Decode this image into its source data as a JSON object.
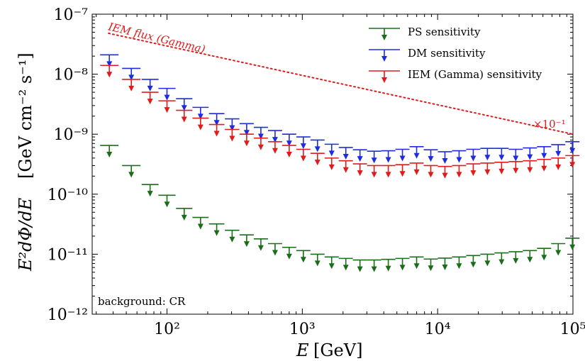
{
  "chart_data": {
    "type": "scatter",
    "xlabel_main": "E",
    "xlabel_unit": "[GeV]",
    "ylabel_main": "E²dΦ/dE",
    "ylabel_unit": "[GeV cm⁻² s⁻¹]",
    "xscale": "log",
    "yscale": "log",
    "xlim": [
      28,
      100000
    ],
    "ylim": [
      1e-12,
      1e-07
    ],
    "x_ticks": [
      {
        "value": 100,
        "label": "10²"
      },
      {
        "value": 1000,
        "label": "10³"
      },
      {
        "value": 10000,
        "label": "10⁴"
      },
      {
        "value": 100000,
        "label": "10⁵"
      }
    ],
    "y_ticks": [
      {
        "value": 1e-12,
        "label": "10⁻¹²"
      },
      {
        "value": 1e-11,
        "label": "10⁻¹¹"
      },
      {
        "value": 1e-10,
        "label": "10⁻¹⁰"
      },
      {
        "value": 1e-09,
        "label": "10⁻⁹"
      },
      {
        "value": 1e-08,
        "label": "10⁻⁸"
      },
      {
        "value": 1e-07,
        "label": "10⁻⁷"
      }
    ],
    "legend_position": "top-right",
    "series": [
      {
        "name": "PS sensitivity",
        "color": "#1a6e1a",
        "marker": "upper-limit-arrow",
        "x": [
          37.5,
          54.5,
          75,
          100,
          134,
          177,
          233,
          303,
          388,
          494,
          629,
          800,
          1018,
          1295,
          1648,
          2097,
          2668,
          3395,
          4320,
          5497,
          6995,
          8900,
          11325,
          14411,
          18337,
          23333,
          29690,
          37778,
          48070,
          61166,
          77830,
          99031
        ],
        "y": [
          6.5e-10,
          3e-10,
          1.45e-10,
          9.6e-11,
          5.8e-11,
          4.1e-11,
          3.2e-11,
          2.5e-11,
          2.1e-11,
          1.8e-11,
          1.5e-11,
          1.3e-11,
          1.15e-11,
          1e-11,
          9e-12,
          8.5e-12,
          8e-12,
          8e-12,
          8.2e-12,
          8.5e-12,
          9e-12,
          8.3e-12,
          8.6e-12,
          9e-12,
          9.5e-12,
          1e-11,
          1.05e-11,
          1.1e-11,
          1.15e-11,
          1.25e-11,
          1.5e-11,
          1.85e-11
        ]
      },
      {
        "name": "DM sensitivity",
        "color": "#1f2be0",
        "marker": "upper-limit-arrow",
        "x": [
          37.5,
          54.5,
          75,
          100,
          134,
          177,
          233,
          303,
          388,
          494,
          629,
          800,
          1018,
          1295,
          1648,
          2097,
          2668,
          3395,
          4320,
          5497,
          6995,
          8900,
          11325,
          14411,
          18337,
          23333,
          29690,
          37778,
          48070,
          61166,
          77830,
          99031
        ],
        "y": [
          2.1e-08,
          1.25e-08,
          8.2e-09,
          5.8e-09,
          3.9e-09,
          2.8e-09,
          2.2e-09,
          1.8e-09,
          1.5e-09,
          1.3e-09,
          1.15e-09,
          1e-09,
          9e-10,
          8e-10,
          6.8e-10,
          6e-10,
          5.5e-10,
          5.2e-10,
          5.3e-10,
          5.6e-10,
          6.2e-10,
          5.5e-10,
          5.1e-10,
          5.3e-10,
          5.6e-10,
          5.8e-10,
          5.8e-10,
          5.6e-10,
          5.9e-10,
          6.2e-10,
          6.7e-10,
          7.5e-10
        ]
      },
      {
        "name": "IEM (Gamma) sensitivity",
        "color": "#e01b1b",
        "marker": "upper-limit-arrow",
        "x": [
          37.5,
          54.5,
          75,
          100,
          134,
          177,
          233,
          303,
          388,
          494,
          629,
          800,
          1018,
          1295,
          1648,
          2097,
          2668,
          3395,
          4320,
          5497,
          6995,
          8900,
          11325,
          14411,
          18337,
          23333,
          29690,
          37778,
          48070,
          61166,
          77830,
          99031
        ],
        "y": [
          1.4e-08,
          8.2e-09,
          5e-09,
          3.6e-09,
          2.5e-09,
          1.85e-09,
          1.45e-09,
          1.2e-09,
          1e-09,
          8.6e-10,
          7.5e-10,
          6.5e-10,
          5.6e-10,
          4.8e-10,
          4e-10,
          3.6e-10,
          3.2e-10,
          3e-10,
          3e-10,
          3.1e-10,
          3.3e-10,
          3e-10,
          2.9e-10,
          3e-10,
          3.2e-10,
          3.3e-10,
          3.4e-10,
          3.5e-10,
          3.6e-10,
          3.8e-10,
          4e-10,
          4.4e-10
        ]
      }
    ],
    "lines": [
      {
        "name": "IEM flux (Gamma)",
        "color": "#e01b1b",
        "style": "dotted",
        "x": [
          37,
          100000
        ],
        "y": [
          4.8e-08,
          1e-09
        ]
      }
    ],
    "annotations": {
      "iem_label": "IEM flux (Gamma)",
      "scale_factor": "×10⁻¹",
      "background": "background: CR"
    }
  }
}
